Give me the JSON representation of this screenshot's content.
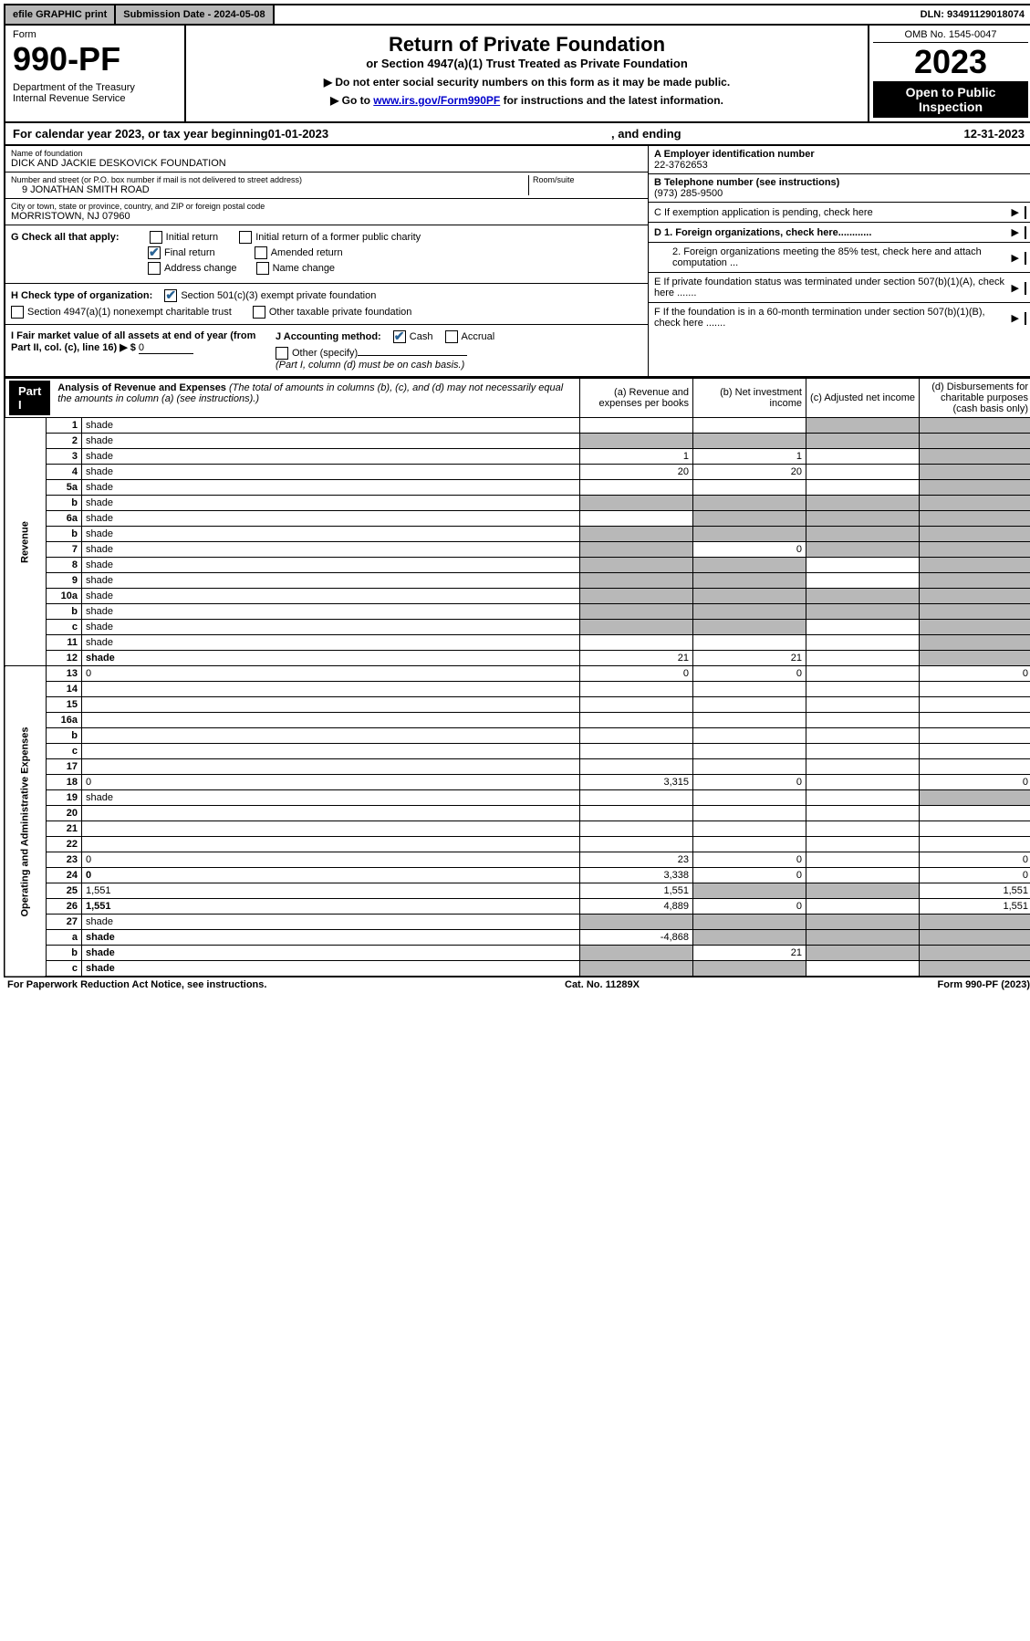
{
  "top": {
    "efile": "efile GRAPHIC print",
    "subdate_label": "Submission Date - ",
    "subdate": "2024-05-08",
    "dln_label": "DLN: ",
    "dln": "93491129018074"
  },
  "header": {
    "form_label": "Form",
    "form_num": "990-PF",
    "dept": "Department of the Treasury\nInternal Revenue Service",
    "title": "Return of Private Foundation",
    "subtitle": "or Section 4947(a)(1) Trust Treated as Private Foundation",
    "note1": "▶ Do not enter social security numbers on this form as it may be made public.",
    "note2_pre": "▶ Go to ",
    "note2_link": "www.irs.gov/Form990PF",
    "note2_post": " for instructions and the latest information.",
    "omb": "OMB No. 1545-0047",
    "year": "2023",
    "open_public": "Open to Public Inspection"
  },
  "calrow": {
    "pre": "For calendar year 2023, or tax year beginning ",
    "begin": "01-01-2023",
    "mid": ", and ending ",
    "end": "12-31-2023"
  },
  "info": {
    "name_label": "Name of foundation",
    "name": "DICK AND JACKIE DESKOVICK FOUNDATION",
    "addr_label": "Number and street (or P.O. box number if mail is not delivered to street address)",
    "addr": "9 JONATHAN SMITH ROAD",
    "room_label": "Room/suite",
    "city_label": "City or town, state or province, country, and ZIP or foreign postal code",
    "city": "MORRISTOWN, NJ  07960",
    "ein_label": "A Employer identification number",
    "ein": "22-3762653",
    "tel_label": "B Telephone number (see instructions)",
    "tel": "(973) 285-9500",
    "c_label": "C If exemption application is pending, check here",
    "d1": "D 1. Foreign organizations, check here............",
    "d2": "2. Foreign organizations meeting the 85% test, check here and attach computation ...",
    "e_label": "E  If private foundation status was terminated under section 507(b)(1)(A), check here .......",
    "f_label": "F  If the foundation is in a 60-month termination under section 507(b)(1)(B), check here .......",
    "g_label": "G Check all that apply:",
    "g_opts": [
      "Initial return",
      "Initial return of a former public charity",
      "Final return",
      "Amended return",
      "Address change",
      "Name change"
    ],
    "h_label": "H Check type of organization:",
    "h_opt1": "Section 501(c)(3) exempt private foundation",
    "h_opt2": "Section 4947(a)(1) nonexempt charitable trust",
    "h_opt3": "Other taxable private foundation",
    "i_label": "I Fair market value of all assets at end of year (from Part II, col. (c), line 16) ▶ $",
    "i_val": "0",
    "j_label": "J Accounting method:",
    "j_cash": "Cash",
    "j_accrual": "Accrual",
    "j_other": "Other (specify)",
    "j_note": "(Part I, column (d) must be on cash basis.)"
  },
  "part1": {
    "label": "Part I",
    "title": "Analysis of Revenue and Expenses",
    "title_note": " (The total of amounts in columns (b), (c), and (d) may not necessarily equal the amounts in column (a) (see instructions).)",
    "col_a": "(a) Revenue and expenses per books",
    "col_b": "(b) Net investment income",
    "col_c": "(c) Adjusted net income",
    "col_d": "(d) Disbursements for charitable purposes (cash basis only)",
    "side_rev": "Revenue",
    "side_exp": "Operating and Administrative Expenses"
  },
  "rows": [
    {
      "n": "1",
      "d": "shade",
      "a": "",
      "b": "",
      "c": "shade"
    },
    {
      "n": "2",
      "d": "shade",
      "a": "shade",
      "b": "shade",
      "c": "shade",
      "bold": false
    },
    {
      "n": "3",
      "d": "shade",
      "a": "1",
      "b": "1",
      "c": ""
    },
    {
      "n": "4",
      "d": "shade",
      "a": "20",
      "b": "20",
      "c": ""
    },
    {
      "n": "5a",
      "d": "shade",
      "a": "",
      "b": "",
      "c": ""
    },
    {
      "n": "b",
      "d": "shade",
      "a": "shade",
      "b": "shade",
      "c": "shade",
      "inline_box": true
    },
    {
      "n": "6a",
      "d": "shade",
      "a": "",
      "b": "shade",
      "c": "shade"
    },
    {
      "n": "b",
      "d": "shade",
      "a": "shade",
      "b": "shade",
      "c": "shade",
      "inline_box": true
    },
    {
      "n": "7",
      "d": "shade",
      "a": "shade",
      "b": "0",
      "c": "shade"
    },
    {
      "n": "8",
      "d": "shade",
      "a": "shade",
      "b": "shade",
      "c": ""
    },
    {
      "n": "9",
      "d": "shade",
      "a": "shade",
      "b": "shade",
      "c": ""
    },
    {
      "n": "10a",
      "d": "shade",
      "a": "shade",
      "b": "shade",
      "c": "shade",
      "inline_box": true
    },
    {
      "n": "b",
      "d": "shade",
      "a": "shade",
      "b": "shade",
      "c": "shade",
      "inline_box": true
    },
    {
      "n": "c",
      "d": "shade",
      "a": "shade",
      "b": "shade",
      "c": ""
    },
    {
      "n": "11",
      "d": "shade",
      "a": "",
      "b": "",
      "c": ""
    },
    {
      "n": "12",
      "d": "shade",
      "a": "21",
      "b": "21",
      "c": "",
      "bold": true
    },
    {
      "n": "13",
      "d": "0",
      "a": "0",
      "b": "0",
      "c": ""
    },
    {
      "n": "14",
      "d": "",
      "a": "",
      "b": "",
      "c": ""
    },
    {
      "n": "15",
      "d": "",
      "a": "",
      "b": "",
      "c": ""
    },
    {
      "n": "16a",
      "d": "",
      "a": "",
      "b": "",
      "c": ""
    },
    {
      "n": "b",
      "d": "",
      "a": "",
      "b": "",
      "c": ""
    },
    {
      "n": "c",
      "d": "",
      "a": "",
      "b": "",
      "c": ""
    },
    {
      "n": "17",
      "d": "",
      "a": "",
      "b": "",
      "c": ""
    },
    {
      "n": "18",
      "d": "0",
      "a": "3,315",
      "b": "0",
      "c": ""
    },
    {
      "n": "19",
      "d": "shade",
      "a": "",
      "b": "",
      "c": ""
    },
    {
      "n": "20",
      "d": "",
      "a": "",
      "b": "",
      "c": ""
    },
    {
      "n": "21",
      "d": "",
      "a": "",
      "b": "",
      "c": ""
    },
    {
      "n": "22",
      "d": "",
      "a": "",
      "b": "",
      "c": ""
    },
    {
      "n": "23",
      "d": "0",
      "a": "23",
      "b": "0",
      "c": ""
    },
    {
      "n": "24",
      "d": "0",
      "a": "3,338",
      "b": "0",
      "c": "",
      "bold": true
    },
    {
      "n": "25",
      "d": "1,551",
      "a": "1,551",
      "b": "shade",
      "c": "shade"
    },
    {
      "n": "26",
      "d": "1,551",
      "a": "4,889",
      "b": "0",
      "c": "",
      "bold": true
    },
    {
      "n": "27",
      "d": "shade",
      "a": "shade",
      "b": "shade",
      "c": "shade"
    },
    {
      "n": "a",
      "d": "shade",
      "a": "-4,868",
      "b": "shade",
      "c": "shade",
      "bold": true
    },
    {
      "n": "b",
      "d": "shade",
      "a": "shade",
      "b": "21",
      "c": "shade",
      "bold": true
    },
    {
      "n": "c",
      "d": "shade",
      "a": "shade",
      "b": "shade",
      "c": "",
      "bold": true
    }
  ],
  "footer": {
    "left": "For Paperwork Reduction Act Notice, see instructions.",
    "mid": "Cat. No. 11289X",
    "right": "Form 990-PF (2023)"
  }
}
